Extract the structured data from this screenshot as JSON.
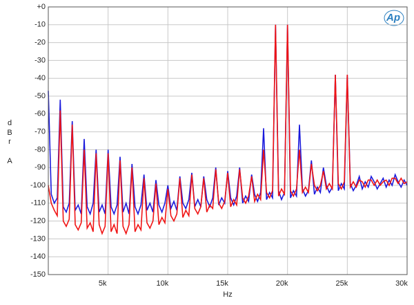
{
  "chart_data": {
    "type": "line",
    "xlabel": "Hz",
    "ylabel_lines": [
      "d",
      "B",
      "r",
      "A"
    ],
    "logo": "Ap",
    "xlim": [
      0,
      30000
    ],
    "ylim": [
      -150,
      0
    ],
    "xticks": [
      {
        "value": 5000,
        "label": "5k"
      },
      {
        "value": 10000,
        "label": "10k"
      },
      {
        "value": 15000,
        "label": "15k"
      },
      {
        "value": 20000,
        "label": "20k"
      },
      {
        "value": 25000,
        "label": "25k"
      },
      {
        "value": 30000,
        "label": "30k"
      }
    ],
    "yticks": [
      {
        "value": 0,
        "label": "+0"
      },
      -10,
      -20,
      -30,
      -40,
      -50,
      -60,
      -70,
      -80,
      -90,
      -100,
      -110,
      -120,
      -130,
      -140,
      -150
    ],
    "grid": true,
    "x": [
      0,
      250,
      500,
      750,
      1000,
      1250,
      1500,
      1750,
      2000,
      2250,
      2500,
      2750,
      3000,
      3250,
      3500,
      3750,
      4000,
      4250,
      4500,
      4750,
      5000,
      5250,
      5500,
      5750,
      6000,
      6250,
      6500,
      6750,
      7000,
      7250,
      7500,
      7750,
      8000,
      8250,
      8500,
      8750,
      9000,
      9250,
      9500,
      9750,
      10000,
      10250,
      10500,
      10750,
      11000,
      11250,
      11500,
      11750,
      12000,
      12250,
      12500,
      12750,
      13000,
      13250,
      13500,
      13750,
      14000,
      14250,
      14500,
      14750,
      15000,
      15250,
      15500,
      15750,
      16000,
      16250,
      16500,
      16750,
      17000,
      17250,
      17500,
      17750,
      18000,
      18250,
      18500,
      18750,
      19000,
      19250,
      19500,
      19750,
      20000,
      20250,
      20500,
      20750,
      21000,
      21250,
      21500,
      21750,
      22000,
      22250,
      22500,
      22750,
      23000,
      23250,
      23500,
      23750,
      24000,
      24250,
      24500,
      24750,
      25000,
      25250,
      25500,
      25750,
      26000,
      26250,
      26500,
      26750,
      27000,
      27250,
      27500,
      27750,
      28000,
      28250,
      28500,
      28750,
      29000,
      29250,
      29500,
      29750,
      30000
    ],
    "series": [
      {
        "color": "#1a1adc",
        "values": [
          -47,
          -105,
          -110,
          -107,
          -52,
          -112,
          -115,
          -110,
          -64,
          -114,
          -111,
          -116,
          -74,
          -112,
          -116,
          -110,
          -80,
          -115,
          -111,
          -116,
          -80,
          -112,
          -116,
          -111,
          -84,
          -115,
          -110,
          -116,
          -88,
          -112,
          -116,
          -111,
          -94,
          -114,
          -110,
          -115,
          -97,
          -111,
          -115,
          -110,
          -100,
          -113,
          -109,
          -114,
          -95,
          -110,
          -113,
          -108,
          -93,
          -112,
          -108,
          -112,
          -95,
          -108,
          -112,
          -107,
          -90,
          -111,
          -107,
          -110,
          -92,
          -107,
          -111,
          -106,
          -90,
          -110,
          -106,
          -109,
          -94,
          -105,
          -109,
          -104,
          -68,
          -108,
          -104,
          -107,
          -10,
          -103,
          -108,
          -104,
          -10,
          -107,
          -103,
          -106,
          -66,
          -102,
          -106,
          -103,
          -86,
          -105,
          -101,
          -104,
          -90,
          -100,
          -104,
          -101,
          -38,
          -103,
          -99,
          -102,
          -38,
          -99,
          -103,
          -100,
          -95,
          -102,
          -98,
          -101,
          -95,
          -98,
          -102,
          -99,
          -96,
          -101,
          -97,
          -100,
          -94,
          -98,
          -101,
          -97,
          -100
        ]
      },
      {
        "color": "#f01414",
        "values": [
          -100,
          -110,
          -114,
          -117,
          -58,
          -120,
          -123,
          -119,
          -66,
          -122,
          -125,
          -121,
          -80,
          -124,
          -121,
          -126,
          -82,
          -122,
          -127,
          -123,
          -82,
          -126,
          -122,
          -127,
          -86,
          -123,
          -127,
          -122,
          -90,
          -126,
          -122,
          -125,
          -96,
          -121,
          -124,
          -120,
          -99,
          -122,
          -118,
          -121,
          -102,
          -117,
          -120,
          -116,
          -96,
          -118,
          -114,
          -117,
          -94,
          -113,
          -116,
          -112,
          -96,
          -115,
          -111,
          -113,
          -91,
          -110,
          -113,
          -109,
          -93,
          -112,
          -108,
          -111,
          -91,
          -107,
          -110,
          -106,
          -95,
          -109,
          -105,
          -108,
          -80,
          -104,
          -107,
          -103,
          -10,
          -106,
          -102,
          -105,
          -10,
          -103,
          -106,
          -102,
          -80,
          -104,
          -101,
          -104,
          -88,
          -100,
          -103,
          -100,
          -92,
          -102,
          -99,
          -102,
          -38,
          -99,
          -102,
          -98,
          -38,
          -101,
          -98,
          -101,
          -97,
          -98,
          -101,
          -97,
          -97,
          -100,
          -97,
          -100,
          -98,
          -97,
          -100,
          -96,
          -96,
          -99,
          -96,
          -99,
          -98
        ]
      }
    ]
  }
}
